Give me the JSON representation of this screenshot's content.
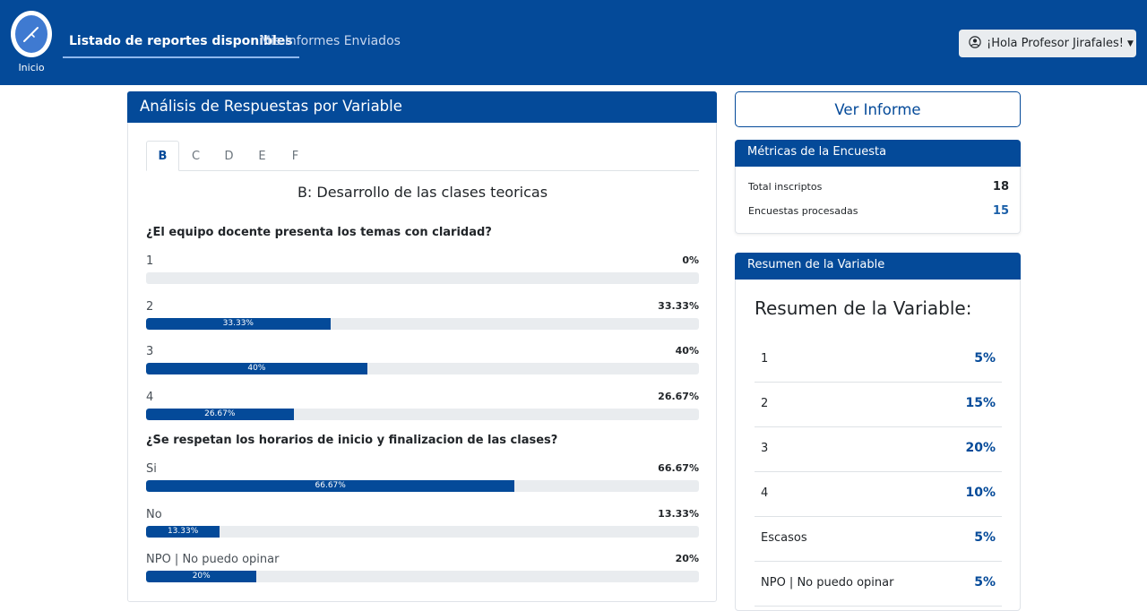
{
  "navbar": {
    "logo_label": "Inicio",
    "active_link": "Listado de reportes disponibles",
    "link": "Mis Informes Enviados",
    "user_button": "¡Hola Profesor Jirafales!"
  },
  "analysis": {
    "header": "Análisis de Respuestas por Variable",
    "tabs": [
      "B",
      "C",
      "D",
      "E",
      "F"
    ],
    "active_tab": "B",
    "section_title": "B: Desarrollo de las clases teoricas",
    "questions": [
      {
        "text": "¿El equipo docente presenta los temas con claridad?",
        "options": [
          {
            "label": "1",
            "pct_text": "0%",
            "bar_text": "",
            "value": 0
          },
          {
            "label": "2",
            "pct_text": "33.33%",
            "bar_text": "33.33%",
            "value": 33.33
          },
          {
            "label": "3",
            "pct_text": "40%",
            "bar_text": "40%",
            "value": 40
          },
          {
            "label": "4",
            "pct_text": "26.67%",
            "bar_text": "26.67%",
            "value": 26.67
          }
        ]
      },
      {
        "text": "¿Se respetan los horarios de inicio y finalizacion de las clases?",
        "options": [
          {
            "label": "Si",
            "pct_text": "66.67%",
            "bar_text": "66.67%",
            "value": 66.67
          },
          {
            "label": "No",
            "pct_text": "13.33%",
            "bar_text": "13.33%",
            "value": 13.33
          },
          {
            "label": "NPO | No puedo opinar",
            "pct_text": "20%",
            "bar_text": "20%",
            "value": 20
          }
        ]
      }
    ]
  },
  "ver_informe": "Ver Informe",
  "metrics": {
    "header": "Métricas de la Encuesta",
    "rows": [
      {
        "label": "Total inscriptos",
        "value": "18",
        "color": "#212529"
      },
      {
        "label": "Encuestas procesadas",
        "value": "15",
        "color": "#1a5fa8"
      }
    ]
  },
  "summary": {
    "header": "Resumen de la Variable",
    "title": "Resumen de la Variable:",
    "rows": [
      {
        "label": "1",
        "value": "5%"
      },
      {
        "label": "2",
        "value": "15%"
      },
      {
        "label": "3",
        "value": "20%"
      },
      {
        "label": "4",
        "value": "10%"
      },
      {
        "label": "Escasos",
        "value": "5%"
      },
      {
        "label": "NPO | No puedo opinar",
        "value": "5%"
      }
    ]
  },
  "colors": {
    "primary": "#044a99",
    "track": "#e9ecef"
  }
}
